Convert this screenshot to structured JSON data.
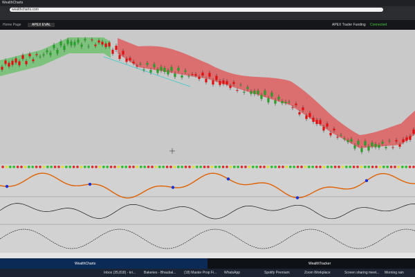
{
  "browser": {
    "tabs": [
      "WealthCharts"
    ],
    "address": "wealthcharts.com"
  },
  "app": {
    "tabs": [
      "Home Page",
      "APEX EVAL"
    ],
    "right_buttons": [
      "APEX Trader Funding",
      "Connected"
    ]
  },
  "bottom_tabs": [
    "WealthCharts",
    "WealthTracker"
  ],
  "taskbar": [
    "Inbox (35,818) - kri...",
    "Bakeries - Bhaubal...",
    "(18) Master Prop Fi...",
    "WhatsApp",
    "Spotify Premium",
    "Zoom Workplace",
    "Screen sharing meet...",
    "Morning rain"
  ]
}
